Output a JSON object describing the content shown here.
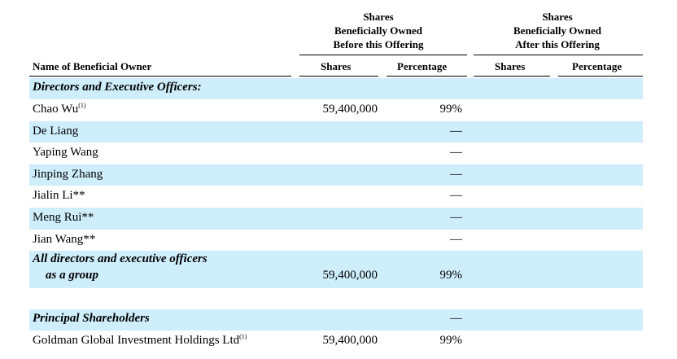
{
  "header": {
    "before_group": [
      "Shares",
      "Beneficially Owned",
      "Before this Offering"
    ],
    "after_group": [
      "Shares",
      "Beneficially Owned",
      "After this Offering"
    ],
    "col_name": "Name of Beneficial Owner",
    "col_shares_before": "Shares",
    "col_pct_before": "Percentage",
    "col_shares_after": "Shares",
    "col_pct_after": "Percentage"
  },
  "sections": {
    "directors_title": "Directors and Executive Officers:",
    "group_line1": "All directors and executive officers",
    "group_line2": "as a group",
    "group_shares": "59,400,000",
    "group_pct": "99%",
    "principal_title": "Principal Shareholders",
    "principal_pct": "—"
  },
  "rows": [
    {
      "name": "Chao Wu",
      "note": "(1)",
      "shares": "59,400,000",
      "pct": "99%"
    },
    {
      "name": "De Liang",
      "note": "",
      "shares": "",
      "pct": "—"
    },
    {
      "name": "Yaping Wang",
      "note": "",
      "shares": "",
      "pct": "—"
    },
    {
      "name": "Jinping Zhang",
      "note": "",
      "shares": "",
      "pct": "—"
    },
    {
      "name": "Jialin Li**",
      "note": "",
      "shares": "",
      "pct": "—"
    },
    {
      "name": "Meng Rui**",
      "note": "",
      "shares": "",
      "pct": "—"
    },
    {
      "name": "Jian Wang**",
      "note": "",
      "shares": "",
      "pct": "—"
    }
  ],
  "principal_rows": [
    {
      "name": "Goldman Global Investment Holdings Ltd",
      "note": "(1)",
      "shares": "59,400,000",
      "pct": "99%"
    }
  ]
}
